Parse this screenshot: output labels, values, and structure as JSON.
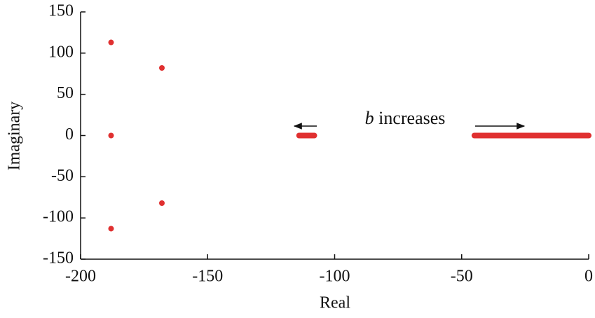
{
  "chart_data": {
    "type": "scatter",
    "xlabel": "Real",
    "ylabel": "Imaginary",
    "xlim": [
      -200,
      0
    ],
    "ylim": [
      -150,
      150
    ],
    "xticks": [
      -200,
      -150,
      -100,
      -50,
      0
    ],
    "yticks": [
      150,
      100,
      50,
      0,
      -50,
      -100,
      -150
    ],
    "annotation_variable": "b",
    "annotation": "increases",
    "series": [
      {
        "type": "scatter",
        "color": "#e03030",
        "x": [
          -188,
          -168,
          -188,
          -168,
          -188
        ],
        "values": [
          113,
          82,
          0,
          -82,
          -113
        ]
      },
      {
        "type": "line",
        "color": "#e03030",
        "x": [
          -114,
          -108
        ],
        "values": [
          0,
          0
        ]
      },
      {
        "type": "line",
        "color": "#e03030",
        "x": [
          -45,
          0
        ],
        "values": [
          0,
          0
        ]
      }
    ]
  }
}
